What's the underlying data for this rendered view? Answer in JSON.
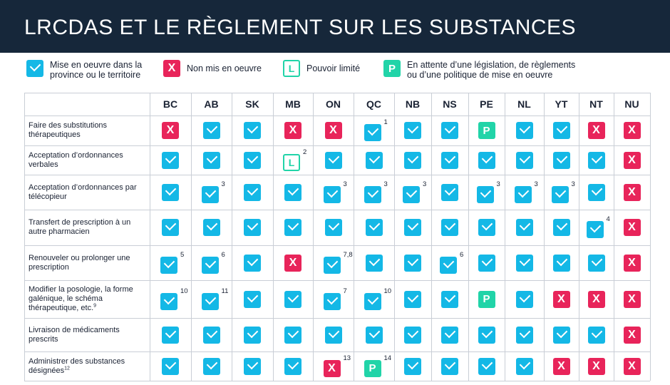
{
  "title": "LRCDAS ET LE RÈGLEMENT SUR LES SUBSTANCES",
  "legend": [
    {
      "icon": "check",
      "label": "Mise en oeuvre dans la province ou le territoire"
    },
    {
      "icon": "x",
      "label": "Non mis en oeuvre"
    },
    {
      "icon": "L",
      "label": "Pouvoir limité"
    },
    {
      "icon": "P",
      "label": "En attente d’une législation, de règlements ou d’une politique de mise en oeuvre"
    }
  ],
  "icon_glyphs": {
    "x": "X",
    "L": "L",
    "P": "P"
  },
  "colors": {
    "header_bg": "#16273a",
    "check": "#14b8e6",
    "x": "#e8245a",
    "pending": "#21d4a8"
  },
  "columns": [
    "BC",
    "AB",
    "SK",
    "MB",
    "ON",
    "QC",
    "NB",
    "NS",
    "PE",
    "NL",
    "YT",
    "NT",
    "NU"
  ],
  "rows": [
    {
      "label": "Faire des substitutions thérapeutiques",
      "label_sup": "",
      "cells": [
        {
          "v": "x"
        },
        {
          "v": "check"
        },
        {
          "v": "check"
        },
        {
          "v": "x"
        },
        {
          "v": "x"
        },
        {
          "v": "check",
          "n": "1"
        },
        {
          "v": "check"
        },
        {
          "v": "check"
        },
        {
          "v": "P"
        },
        {
          "v": "check"
        },
        {
          "v": "check"
        },
        {
          "v": "x"
        },
        {
          "v": "x"
        }
      ]
    },
    {
      "label": "Acceptation d’ordonnances verbales",
      "label_sup": "",
      "cells": [
        {
          "v": "check"
        },
        {
          "v": "check"
        },
        {
          "v": "check"
        },
        {
          "v": "L",
          "n": "2"
        },
        {
          "v": "check"
        },
        {
          "v": "check"
        },
        {
          "v": "check"
        },
        {
          "v": "check"
        },
        {
          "v": "check"
        },
        {
          "v": "check"
        },
        {
          "v": "check"
        },
        {
          "v": "check"
        },
        {
          "v": "x"
        }
      ]
    },
    {
      "label": "Acceptation d’ordonnances par télécopieur",
      "label_sup": "",
      "cells": [
        {
          "v": "check"
        },
        {
          "v": "check",
          "n": "3"
        },
        {
          "v": "check"
        },
        {
          "v": "check"
        },
        {
          "v": "check",
          "n": "3"
        },
        {
          "v": "check",
          "n": "3"
        },
        {
          "v": "check",
          "n": "3"
        },
        {
          "v": "check"
        },
        {
          "v": "check",
          "n": "3"
        },
        {
          "v": "check",
          "n": "3"
        },
        {
          "v": "check",
          "n": "3"
        },
        {
          "v": "check"
        },
        {
          "v": "x"
        }
      ]
    },
    {
      "label": "Transfert de prescription à un autre pharmacien",
      "label_sup": "",
      "cells": [
        {
          "v": "check"
        },
        {
          "v": "check"
        },
        {
          "v": "check"
        },
        {
          "v": "check"
        },
        {
          "v": "check"
        },
        {
          "v": "check"
        },
        {
          "v": "check"
        },
        {
          "v": "check"
        },
        {
          "v": "check"
        },
        {
          "v": "check"
        },
        {
          "v": "check"
        },
        {
          "v": "check",
          "n": "4"
        },
        {
          "v": "x"
        }
      ]
    },
    {
      "label": "Renouveler ou prolonger une prescription",
      "label_sup": "",
      "cells": [
        {
          "v": "check",
          "n": "5"
        },
        {
          "v": "check",
          "n": "6"
        },
        {
          "v": "check"
        },
        {
          "v": "x"
        },
        {
          "v": "check",
          "n": "7,8"
        },
        {
          "v": "check"
        },
        {
          "v": "check"
        },
        {
          "v": "check",
          "n": "6"
        },
        {
          "v": "check"
        },
        {
          "v": "check"
        },
        {
          "v": "check"
        },
        {
          "v": "check"
        },
        {
          "v": "x"
        }
      ]
    },
    {
      "label": "Modifier la posologie, la forme galénique, le schéma thérapeutique, etc.",
      "label_sup": "9",
      "cells": [
        {
          "v": "check",
          "n": "10"
        },
        {
          "v": "check",
          "n": "11"
        },
        {
          "v": "check"
        },
        {
          "v": "check"
        },
        {
          "v": "check",
          "n": "7"
        },
        {
          "v": "check",
          "n": "10"
        },
        {
          "v": "check"
        },
        {
          "v": "check"
        },
        {
          "v": "P"
        },
        {
          "v": "check"
        },
        {
          "v": "x"
        },
        {
          "v": "x"
        },
        {
          "v": "x"
        }
      ]
    },
    {
      "label": "Livraison de médicaments prescrits",
      "label_sup": "",
      "cells": [
        {
          "v": "check"
        },
        {
          "v": "check"
        },
        {
          "v": "check"
        },
        {
          "v": "check"
        },
        {
          "v": "check"
        },
        {
          "v": "check"
        },
        {
          "v": "check"
        },
        {
          "v": "check"
        },
        {
          "v": "check"
        },
        {
          "v": "check"
        },
        {
          "v": "check"
        },
        {
          "v": "check"
        },
        {
          "v": "x"
        }
      ]
    },
    {
      "label": "Administrer des substances désignées",
      "label_sup": "12",
      "cells": [
        {
          "v": "check"
        },
        {
          "v": "check"
        },
        {
          "v": "check"
        },
        {
          "v": "check"
        },
        {
          "v": "x",
          "n": "13"
        },
        {
          "v": "P",
          "n": "14"
        },
        {
          "v": "check"
        },
        {
          "v": "check"
        },
        {
          "v": "check"
        },
        {
          "v": "check"
        },
        {
          "v": "x"
        },
        {
          "v": "x"
        },
        {
          "v": "x"
        }
      ]
    }
  ]
}
